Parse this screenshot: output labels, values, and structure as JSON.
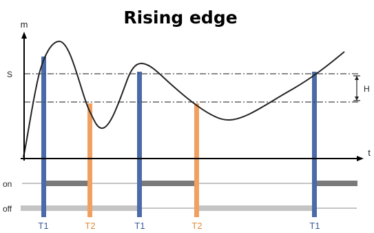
{
  "title": "Rising edge",
  "axes": {
    "y_label": "m",
    "x_label": "t"
  },
  "levels": {
    "s_label": "S",
    "h_label": "H"
  },
  "state_labels": {
    "on": "on",
    "off": "off"
  },
  "markers": [
    {
      "label": "T1",
      "kind": "T1"
    },
    {
      "label": "T2",
      "kind": "T2"
    },
    {
      "label": "T1",
      "kind": "T1"
    },
    {
      "label": "T2",
      "kind": "T2"
    },
    {
      "label": "T1",
      "kind": "T1"
    }
  ],
  "colors": {
    "t1_bar": "#4a6aa8",
    "t2_bar": "#f0a060",
    "on_band": "#7a7a7a",
    "off_band": "#c4c4c4",
    "curve": "#222222",
    "guide": "#444444"
  }
}
